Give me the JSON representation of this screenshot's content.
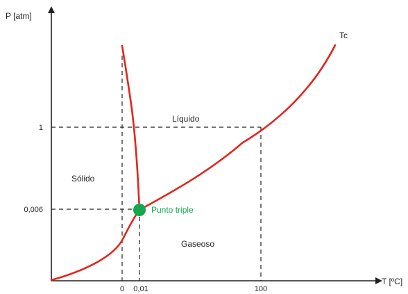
{
  "diagram": {
    "y_axis_label": "P [atm]",
    "x_axis_label": "T [ºC]",
    "x_ticks": [
      "0",
      "0,01",
      "100"
    ],
    "y_ticks": [
      "1",
      "0,006"
    ],
    "regions": {
      "solid": "Sólido",
      "liquid": "Líquido",
      "gas": "Gaseoso"
    },
    "critical_point_label": "Tc",
    "triple_point_label": "Punto triple",
    "colors": {
      "curve": "#e3241b",
      "triple_point": "#11a84e",
      "axis": "#231f20",
      "guide": "#231f20"
    }
  }
}
